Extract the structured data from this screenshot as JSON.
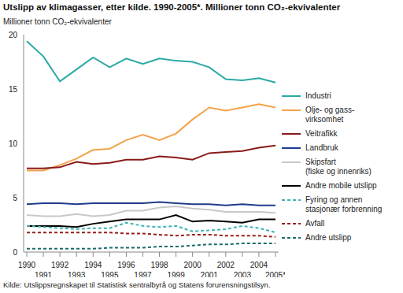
{
  "chart_data": {
    "type": "line",
    "title": "Utslipp av klimagasser, etter kilde. 1990-2005*. Millioner tonn CO₂-ekvivalenter",
    "ylabel": "Millioner tonn CO₂-ekvivalenter",
    "source": "Kilde: Utslippsregnskapet til Statistisk sentralbyrå og Statens forurensningstilsyn.",
    "categories": [
      "1990",
      "1991",
      "1992",
      "1993",
      "1994",
      "1995",
      "1996",
      "1997",
      "1998",
      "1999",
      "2000",
      "2001",
      "2002",
      "2003",
      "2004",
      "2005*"
    ],
    "ylim": [
      0,
      20
    ],
    "yticks": [
      0,
      5,
      10,
      15,
      20
    ],
    "grid": false,
    "series": [
      {
        "name": "Industri",
        "color": "#2aa9a5",
        "line_style": "solid",
        "values": [
          19.4,
          18.0,
          15.7,
          16.8,
          17.9,
          17.0,
          17.8,
          17.3,
          17.8,
          17.6,
          17.5,
          17.0,
          15.9,
          15.8,
          16.0,
          15.6
        ]
      },
      {
        "name": "Olje- og gass-\nvirksomhet",
        "color": "#f4a24a",
        "line_style": "solid",
        "values": [
          7.5,
          7.5,
          8.0,
          8.6,
          9.4,
          9.5,
          10.3,
          10.8,
          10.3,
          10.9,
          12.2,
          13.3,
          13.0,
          13.3,
          13.6,
          13.3
        ]
      },
      {
        "name": "Veitrafikk",
        "color": "#8b1a1a",
        "line_style": "solid",
        "values": [
          7.7,
          7.7,
          7.8,
          8.3,
          8.1,
          8.2,
          8.5,
          8.5,
          8.8,
          8.7,
          8.5,
          9.1,
          9.2,
          9.3,
          9.6,
          9.8
        ]
      },
      {
        "name": "Landbruk",
        "color": "#1f3d8c",
        "line_style": "solid",
        "values": [
          4.4,
          4.5,
          4.5,
          4.4,
          4.5,
          4.5,
          4.5,
          4.5,
          4.6,
          4.5,
          4.4,
          4.4,
          4.3,
          4.4,
          4.3,
          4.3
        ]
      },
      {
        "name": "Skipsfart\n(fiske og innenriks)",
        "color": "#c8c8c8",
        "line_style": "solid",
        "values": [
          3.4,
          3.3,
          3.3,
          3.5,
          3.3,
          3.4,
          3.8,
          3.8,
          4.1,
          4.2,
          4.0,
          3.9,
          3.7,
          3.7,
          3.7,
          3.6
        ]
      },
      {
        "name": "Andre mobile utslipp",
        "color": "#000000",
        "line_style": "solid",
        "values": [
          2.4,
          2.4,
          2.4,
          2.3,
          2.6,
          2.8,
          3.0,
          3.0,
          3.0,
          3.4,
          2.8,
          2.9,
          2.8,
          2.7,
          3.0,
          3.0
        ]
      },
      {
        "name": "Fyring og annen\nstasjonær forbrenning",
        "color": "#3cb3b0",
        "line_style": "dashed",
        "values": [
          2.4,
          2.3,
          2.2,
          2.1,
          2.2,
          2.2,
          2.7,
          2.4,
          2.3,
          2.4,
          1.9,
          2.0,
          2.1,
          2.4,
          2.2,
          1.8
        ]
      },
      {
        "name": "Avfall",
        "color": "#9b1c1c",
        "line_style": "dashed",
        "values": [
          1.8,
          1.8,
          1.8,
          1.8,
          1.8,
          1.8,
          1.7,
          1.7,
          1.6,
          1.5,
          1.6,
          1.6,
          1.5,
          1.5,
          1.5,
          1.4
        ]
      },
      {
        "name": "Andre utslipp",
        "color": "#1a6b6b",
        "line_style": "dashed",
        "values": [
          0.3,
          0.3,
          0.3,
          0.3,
          0.3,
          0.4,
          0.4,
          0.4,
          0.5,
          0.5,
          0.6,
          0.7,
          0.7,
          0.8,
          0.8,
          0.8
        ]
      }
    ]
  }
}
